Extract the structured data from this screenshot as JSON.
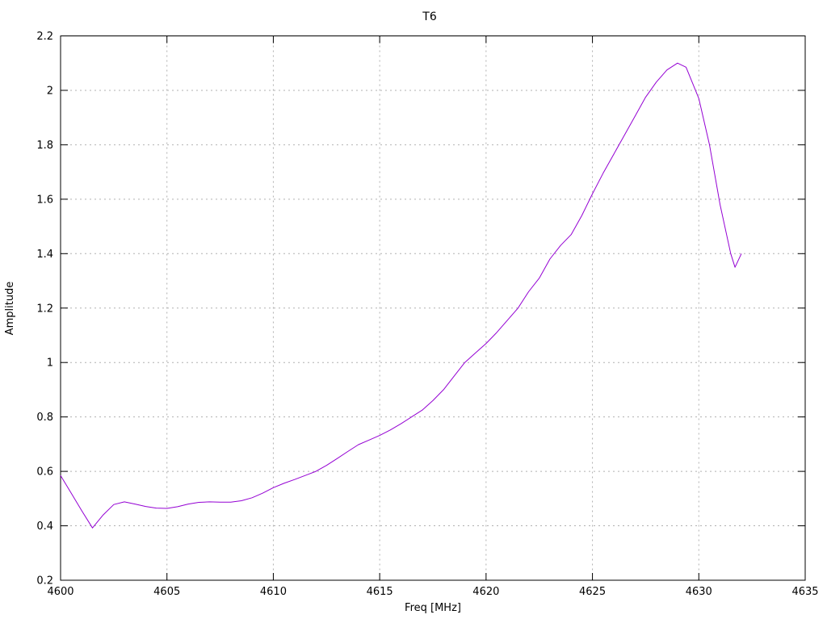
{
  "chart_data": {
    "type": "line",
    "title": "T6",
    "xlabel": "Freq [MHz]",
    "ylabel": "Amplitude",
    "xlim": [
      4600,
      4635
    ],
    "ylim": [
      0.2,
      2.2
    ],
    "grid": true,
    "legend_position": "none",
    "xticks": {
      "values": [
        4600,
        4605,
        4610,
        4615,
        4620,
        4625,
        4630,
        4635
      ],
      "labels": [
        "4600",
        "4605",
        "4610",
        "4615",
        "4620",
        "4625",
        "4630",
        "4635"
      ]
    },
    "yticks": {
      "values": [
        0.2,
        0.4,
        0.6,
        0.8,
        1.0,
        1.2,
        1.4,
        1.6,
        1.8,
        2.0,
        2.2
      ],
      "labels": [
        "0.2",
        "0.4",
        "0.6",
        "0.8",
        "1",
        "1.2",
        "1.4",
        "1.6",
        "1.8",
        "2",
        "2.2"
      ]
    },
    "colors": {
      "line": "#9400d3",
      "grid": "#b0b0b0",
      "axis": "#000000",
      "background": "#ffffff",
      "text": "#000000"
    },
    "series": [
      {
        "name": "T6",
        "color": "#9400d3",
        "x": [
          4600,
          4600.5,
          4601,
          4601.5,
          4602,
          4602.5,
          4603,
          4603.5,
          4604,
          4604.5,
          4605,
          4605.5,
          4606,
          4606.5,
          4607,
          4607.5,
          4608,
          4608.5,
          4609,
          4609.5,
          4610,
          4610.5,
          4611,
          4611.5,
          4612,
          4612.5,
          4613,
          4613.5,
          4614,
          4614.5,
          4615,
          4615.5,
          4616,
          4616.5,
          4617,
          4617.5,
          4618,
          4618.5,
          4619,
          4619.5,
          4620,
          4620.5,
          4621,
          4621.5,
          4622,
          4622.5,
          4623,
          4623.5,
          4624,
          4624.5,
          4625,
          4625.5,
          4626,
          4626.5,
          4627,
          4627.5,
          4628,
          4628.5,
          4629,
          4629.4,
          4630,
          4630.5,
          4631,
          4631.5,
          4631.7,
          4632
        ],
        "y": [
          0.585,
          0.52,
          0.455,
          0.392,
          0.44,
          0.478,
          0.488,
          0.48,
          0.471,
          0.465,
          0.464,
          0.47,
          0.48,
          0.486,
          0.488,
          0.487,
          0.487,
          0.492,
          0.503,
          0.52,
          0.54,
          0.556,
          0.57,
          0.585,
          0.6,
          0.622,
          0.647,
          0.673,
          0.698,
          0.715,
          0.732,
          0.752,
          0.775,
          0.8,
          0.825,
          0.86,
          0.9,
          0.95,
          1.0,
          1.035,
          1.07,
          1.11,
          1.155,
          1.2,
          1.26,
          1.31,
          1.38,
          1.43,
          1.47,
          1.54,
          1.62,
          1.695,
          1.765,
          1.835,
          1.905,
          1.975,
          2.03,
          2.075,
          2.1,
          2.085,
          1.97,
          1.8,
          1.58,
          1.4,
          1.35,
          1.4
        ]
      }
    ]
  }
}
